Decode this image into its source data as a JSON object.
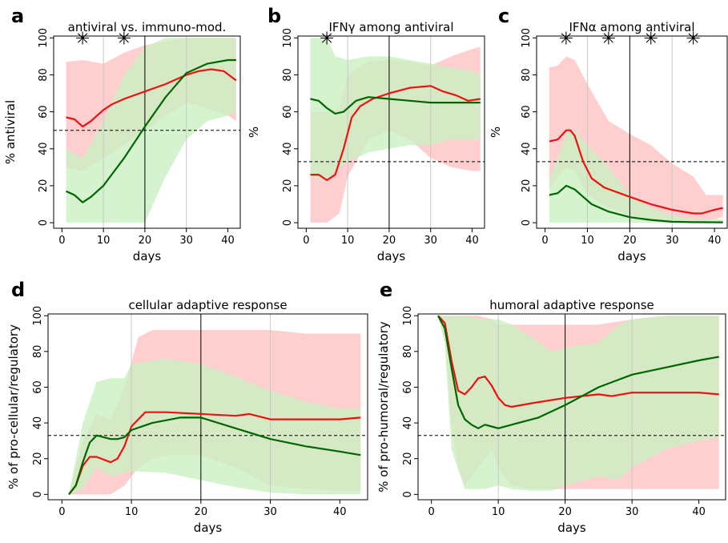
{
  "chart_data": [
    {
      "id": "a",
      "letter": "a",
      "type": "line",
      "title": "antiviral vs. immuno-mod.",
      "xlabel": "days",
      "ylabel": "% antiviral",
      "xlim": [
        -2,
        43
      ],
      "ylim": [
        -3,
        101
      ],
      "xticks": [
        0,
        10,
        20,
        30,
        40
      ],
      "yticks": [
        0,
        20,
        40,
        60,
        80,
        100
      ],
      "grid_x": [
        10,
        20,
        30
      ],
      "solid_vline": 20,
      "dashed_hline": 50,
      "stars": [
        5,
        15
      ],
      "bands": [
        {
          "color": "#ffc2c2",
          "x": [
            1,
            5,
            10,
            15,
            20,
            25,
            30,
            35,
            40,
            42
          ],
          "lower": [
            30,
            28,
            35,
            42,
            50,
            58,
            65,
            62,
            58,
            55
          ],
          "upper": [
            87,
            88,
            86,
            92,
            96,
            98,
            100,
            100,
            100,
            100
          ]
        },
        {
          "color": "#c8f0c0",
          "x": [
            1,
            5,
            10,
            15,
            20,
            25,
            30,
            35,
            40,
            42
          ],
          "lower": [
            0,
            0,
            0,
            0,
            0,
            25,
            45,
            55,
            58,
            60
          ],
          "upper": [
            40,
            35,
            55,
            80,
            95,
            100,
            100,
            100,
            100,
            100
          ]
        }
      ],
      "series": [
        {
          "color": "#ee1111",
          "x": [
            1,
            3,
            5,
            7,
            10,
            12,
            15,
            20,
            25,
            30,
            33,
            36,
            39,
            42
          ],
          "y": [
            57,
            56,
            52,
            55,
            61,
            64,
            67,
            71,
            75,
            80,
            82,
            83,
            82,
            77
          ]
        },
        {
          "color": "#006600",
          "x": [
            1,
            3,
            5,
            7,
            10,
            15,
            20,
            25,
            30,
            35,
            40,
            42
          ],
          "y": [
            17,
            15,
            11,
            14,
            20,
            35,
            52,
            68,
            81,
            86,
            88,
            88
          ]
        }
      ]
    },
    {
      "id": "b",
      "letter": "b",
      "type": "line",
      "title": "IFNγ among antiviral",
      "xlabel": "days",
      "ylabel": "%",
      "xlim": [
        -2,
        43
      ],
      "ylim": [
        -3,
        101
      ],
      "xticks": [
        0,
        10,
        20,
        30,
        40
      ],
      "yticks": [
        0,
        20,
        40,
        60,
        80,
        100
      ],
      "grid_x": [
        10,
        20,
        30
      ],
      "solid_vline": 20,
      "dashed_hline": 33,
      "stars": [
        5
      ],
      "bands": [
        {
          "color": "#ffc2c2",
          "x": [
            1,
            5,
            8,
            10,
            15,
            20,
            25,
            30,
            35,
            40,
            42
          ],
          "lower": [
            0,
            0,
            5,
            25,
            45,
            50,
            45,
            35,
            30,
            28,
            28
          ],
          "upper": [
            60,
            60,
            62,
            80,
            87,
            88,
            87,
            85,
            90,
            94,
            95
          ]
        },
        {
          "color": "#c8f0c0",
          "x": [
            1,
            5,
            7,
            10,
            15,
            20,
            25,
            30,
            35,
            40,
            42
          ],
          "lower": [
            25,
            22,
            28,
            33,
            38,
            40,
            42,
            42,
            45,
            45,
            45
          ],
          "upper": [
            100,
            100,
            90,
            88,
            90,
            90,
            88,
            86,
            84,
            82,
            80
          ]
        }
      ],
      "series": [
        {
          "color": "#ee1111",
          "x": [
            1,
            3,
            5,
            7,
            9,
            11,
            13,
            16,
            20,
            25,
            30,
            33,
            36,
            39,
            42
          ],
          "y": [
            26,
            26,
            23,
            26,
            40,
            57,
            63,
            67,
            70,
            73,
            74,
            71,
            69,
            66,
            67
          ]
        },
        {
          "color": "#006600",
          "x": [
            1,
            3,
            5,
            7,
            9,
            12,
            15,
            20,
            25,
            30,
            35,
            40,
            42
          ],
          "y": [
            67,
            66,
            62,
            59,
            60,
            66,
            68,
            67,
            66,
            65,
            65,
            65,
            65
          ]
        }
      ]
    },
    {
      "id": "c",
      "letter": "c",
      "type": "line",
      "title": "IFNα among antiviral",
      "xlabel": "days",
      "ylabel": "%",
      "xlim": [
        -2,
        43
      ],
      "ylim": [
        -3,
        101
      ],
      "xticks": [
        0,
        10,
        20,
        30,
        40
      ],
      "yticks": [
        0,
        20,
        40,
        60,
        80,
        100
      ],
      "grid_x": [
        10,
        20,
        30
      ],
      "solid_vline": 20,
      "dashed_hline": 33,
      "stars": [
        5,
        15,
        25,
        35
      ],
      "bands": [
        {
          "color": "#ffc2c2",
          "x": [
            1,
            3,
            5,
            7,
            10,
            15,
            20,
            25,
            30,
            35,
            38,
            40,
            42
          ],
          "lower": [
            18,
            25,
            30,
            28,
            15,
            8,
            4,
            2,
            1,
            1,
            1,
            2,
            3
          ],
          "upper": [
            84,
            85,
            90,
            88,
            75,
            55,
            48,
            42,
            32,
            25,
            15,
            15,
            15
          ]
        },
        {
          "color": "#c8f0c0",
          "x": [
            1,
            3,
            5,
            7,
            10,
            15,
            20,
            25,
            30,
            35,
            42
          ],
          "lower": [
            0,
            0,
            0,
            0,
            0,
            0,
            0,
            0,
            0,
            0,
            0
          ],
          "upper": [
            24,
            35,
            48,
            50,
            42,
            30,
            15,
            8,
            4,
            2,
            2
          ]
        }
      ],
      "series": [
        {
          "color": "#ee1111",
          "x": [
            1,
            3,
            5,
            6,
            7,
            9,
            11,
            14,
            20,
            25,
            30,
            35,
            37,
            40,
            42
          ],
          "y": [
            44,
            45,
            50,
            50,
            47,
            33,
            24,
            19,
            14,
            10,
            7,
            5,
            5,
            7,
            8
          ]
        },
        {
          "color": "#006600",
          "x": [
            1,
            3,
            5,
            7,
            9,
            11,
            15,
            20,
            25,
            30,
            35,
            42
          ],
          "y": [
            15,
            16,
            20,
            18,
            14,
            10,
            6,
            3,
            1.5,
            0.5,
            0.3,
            0.2
          ]
        }
      ]
    },
    {
      "id": "d",
      "letter": "d",
      "type": "line",
      "title": "cellular adaptive response",
      "xlabel": "days",
      "ylabel": "% of pro-cellular/regulatory",
      "xlim": [
        -2,
        44
      ],
      "ylim": [
        -3,
        101
      ],
      "xticks": [
        0,
        10,
        20,
        30,
        40
      ],
      "yticks": [
        0,
        20,
        40,
        60,
        80,
        100
      ],
      "grid_x": [
        10,
        30
      ],
      "solid_vline": 20,
      "dashed_hline": 33,
      "stars": [],
      "bands": [
        {
          "color": "#ffc2c2",
          "x": [
            1,
            3,
            5,
            7,
            9,
            11,
            13,
            15,
            20,
            25,
            30,
            35,
            40,
            43
          ],
          "lower": [
            0,
            0,
            0,
            0,
            5,
            15,
            20,
            22,
            22,
            15,
            5,
            3,
            2,
            2
          ],
          "upper": [
            0,
            30,
            45,
            42,
            60,
            88,
            92,
            92,
            92,
            92,
            92,
            90,
            90,
            90
          ]
        },
        {
          "color": "#c8f0c0",
          "x": [
            1,
            3,
            5,
            7,
            9,
            10,
            15,
            20,
            25,
            30,
            35,
            40,
            43
          ],
          "lower": [
            0,
            3,
            15,
            10,
            12,
            13,
            12,
            8,
            4,
            1,
            0,
            0,
            0
          ],
          "upper": [
            0,
            40,
            63,
            65,
            65,
            73,
            76,
            73,
            66,
            58,
            52,
            48,
            48
          ]
        }
      ],
      "series": [
        {
          "color": "#ee1111",
          "x": [
            1,
            2,
            3,
            4,
            5,
            7,
            8,
            9,
            10,
            12,
            15,
            20,
            25,
            27,
            30,
            35,
            40,
            43
          ],
          "y": [
            0,
            5,
            16,
            21,
            21,
            18,
            20,
            27,
            38,
            46,
            46,
            45,
            44,
            45,
            42,
            42,
            42,
            43
          ]
        },
        {
          "color": "#006600",
          "x": [
            1,
            2,
            3,
            4,
            5,
            6,
            7,
            8,
            9,
            10,
            13,
            17,
            20,
            25,
            30,
            35,
            40,
            43
          ],
          "y": [
            0,
            5,
            18,
            29,
            33,
            32,
            31,
            31,
            32,
            36,
            40,
            43,
            43,
            37,
            31,
            27,
            24,
            22
          ]
        }
      ]
    },
    {
      "id": "e",
      "letter": "e",
      "type": "line",
      "title": "humoral adaptive response",
      "xlabel": "days",
      "ylabel": "% of pro-humoral/regulatory",
      "xlim": [
        -2,
        44
      ],
      "ylim": [
        -3,
        101
      ],
      "xticks": [
        0,
        10,
        20,
        30,
        40
      ],
      "yticks": [
        0,
        20,
        40,
        60,
        80,
        100
      ],
      "grid_x": [
        10,
        30
      ],
      "solid_vline": 20,
      "dashed_hline": 33,
      "stars": [],
      "bands": [
        {
          "color": "#ffc2c2",
          "x": [
            1,
            2,
            3,
            4,
            5,
            7,
            9,
            10,
            12,
            15,
            20,
            25,
            30,
            35,
            40,
            43
          ],
          "lower": [
            100,
            85,
            40,
            15,
            5,
            15,
            25,
            15,
            5,
            3,
            3,
            3,
            3,
            3,
            3,
            3
          ],
          "upper": [
            100,
            100,
            100,
            100,
            100,
            100,
            98,
            95,
            95,
            95,
            95,
            95,
            98,
            100,
            100,
            100
          ]
        },
        {
          "color": "#c8f0c0",
          "x": [
            1,
            2,
            3,
            5,
            8,
            10,
            12,
            15,
            18,
            20,
            25,
            28,
            30,
            35,
            40,
            43
          ],
          "lower": [
            100,
            85,
            25,
            3,
            3,
            5,
            3,
            2,
            2,
            5,
            10,
            8,
            15,
            25,
            30,
            32
          ],
          "upper": [
            100,
            100,
            100,
            100,
            98,
            98,
            95,
            88,
            80,
            82,
            85,
            95,
            98,
            100,
            100,
            100
          ]
        }
      ],
      "series": [
        {
          "color": "#ee1111",
          "x": [
            1,
            2,
            3,
            4,
            5,
            6,
            7,
            8,
            9,
            10,
            11,
            12,
            15,
            20,
            25,
            27,
            30,
            35,
            40,
            43
          ],
          "y": [
            100,
            96,
            75,
            58,
            56,
            60,
            65,
            66,
            61,
            54,
            50,
            49,
            51,
            54,
            56,
            55,
            57,
            57,
            57,
            56
          ]
        },
        {
          "color": "#006600",
          "x": [
            1,
            2,
            3,
            4,
            5,
            6,
            7,
            8,
            9,
            10,
            13,
            16,
            20,
            25,
            30,
            35,
            40,
            43
          ],
          "y": [
            100,
            93,
            71,
            50,
            42,
            39,
            37,
            39,
            38,
            37,
            40,
            43,
            50,
            60,
            67,
            71,
            75,
            77
          ]
        }
      ]
    }
  ]
}
